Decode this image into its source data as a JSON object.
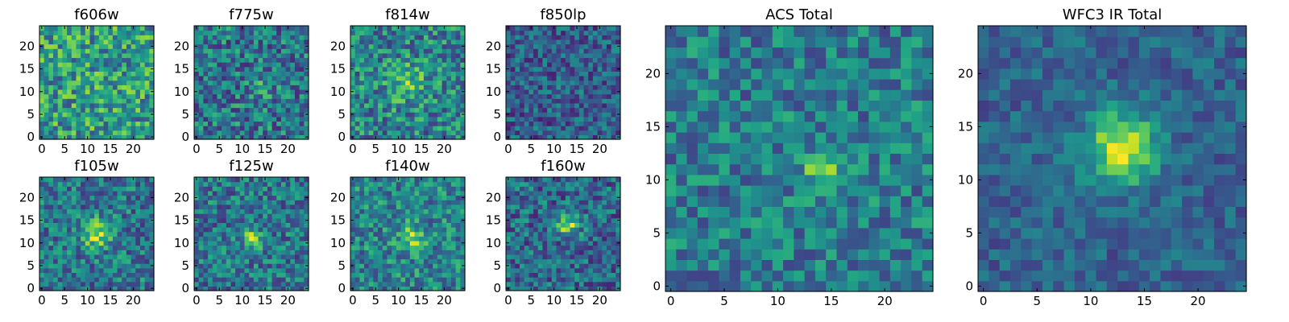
{
  "figure": {
    "colormap": "viridis",
    "stamp_size": 25
  },
  "chart_data": [
    {
      "type": "heatmap",
      "title": "f606w",
      "xticks": [
        0,
        5,
        10,
        15,
        20
      ],
      "yticks": [
        0,
        5,
        10,
        15,
        20
      ],
      "xlim": [
        0,
        25
      ],
      "ylim": [
        0,
        25
      ],
      "seed": 11,
      "peak": {
        "x": 13,
        "y": 12,
        "amp": 0.05,
        "sigma": 2.0
      },
      "base": 0.55,
      "noise": 0.3
    },
    {
      "type": "heatmap",
      "title": "f775w",
      "xticks": [
        0,
        5,
        10,
        15,
        20
      ],
      "yticks": [
        0,
        5,
        10,
        15,
        20
      ],
      "xlim": [
        0,
        25
      ],
      "ylim": [
        0,
        25
      ],
      "seed": 23,
      "peak": {
        "x": 14,
        "y": 11,
        "amp": 0.2,
        "sigma": 1.6
      },
      "base": 0.4,
      "noise": 0.28
    },
    {
      "type": "heatmap",
      "title": "f814w",
      "xticks": [
        0,
        5,
        10,
        15,
        20
      ],
      "yticks": [
        0,
        5,
        10,
        15,
        20
      ],
      "xlim": [
        0,
        25
      ],
      "ylim": [
        0,
        25
      ],
      "seed": 37,
      "peak": {
        "x": 12,
        "y": 12,
        "amp": 0.25,
        "sigma": 3.0
      },
      "base": 0.45,
      "noise": 0.28
    },
    {
      "type": "heatmap",
      "title": "f850lp",
      "xticks": [
        0,
        5,
        10,
        15,
        20
      ],
      "yticks": [
        0,
        5,
        10,
        15,
        20
      ],
      "xlim": [
        0,
        25
      ],
      "ylim": [
        0,
        25
      ],
      "seed": 41,
      "peak": {
        "x": 13,
        "y": 12,
        "amp": 0.05,
        "sigma": 2.0
      },
      "base": 0.3,
      "noise": 0.22
    },
    {
      "type": "heatmap",
      "title": "f105w",
      "xticks": [
        0,
        5,
        10,
        15,
        20
      ],
      "yticks": [
        0,
        5,
        10,
        15,
        20
      ],
      "xlim": [
        0,
        25
      ],
      "ylim": [
        0,
        25
      ],
      "seed": 53,
      "peak": {
        "x": 12,
        "y": 12,
        "amp": 0.45,
        "sigma": 2.2
      },
      "base": 0.4,
      "noise": 0.25
    },
    {
      "type": "heatmap",
      "title": "f125w",
      "xticks": [
        0,
        5,
        10,
        15,
        20
      ],
      "yticks": [
        0,
        5,
        10,
        15,
        20
      ],
      "xlim": [
        0,
        25
      ],
      "ylim": [
        0,
        25
      ],
      "seed": 67,
      "peak": {
        "x": 12,
        "y": 11,
        "amp": 0.4,
        "sigma": 1.5
      },
      "base": 0.4,
      "noise": 0.25
    },
    {
      "type": "heatmap",
      "title": "f140w",
      "xticks": [
        0,
        5,
        10,
        15,
        20
      ],
      "yticks": [
        0,
        5,
        10,
        15,
        20
      ],
      "xlim": [
        0,
        25
      ],
      "ylim": [
        0,
        25
      ],
      "seed": 79,
      "peak": {
        "x": 13,
        "y": 11,
        "amp": 0.35,
        "sigma": 2.0
      },
      "base": 0.45,
      "noise": 0.25
    },
    {
      "type": "heatmap",
      "title": "f160w",
      "xticks": [
        0,
        5,
        10,
        15,
        20
      ],
      "yticks": [
        0,
        5,
        10,
        15,
        20
      ],
      "xlim": [
        0,
        25
      ],
      "ylim": [
        0,
        25
      ],
      "seed": 83,
      "peak": {
        "x": 13,
        "y": 14,
        "amp": 0.5,
        "sigma": 1.7
      },
      "base": 0.35,
      "noise": 0.25
    },
    {
      "type": "heatmap",
      "title": "ACS Total",
      "xticks": [
        0,
        5,
        10,
        15,
        20
      ],
      "yticks": [
        0,
        5,
        10,
        15,
        20
      ],
      "xlim": [
        0,
        25
      ],
      "ylim": [
        0,
        25
      ],
      "seed": 97,
      "peak": {
        "x": 14,
        "y": 11,
        "amp": 0.5,
        "sigma": 1.0
      },
      "base": 0.42,
      "noise": 0.22
    },
    {
      "type": "heatmap",
      "title": "WFC3 IR Total",
      "xticks": [
        0,
        5,
        10,
        15,
        20
      ],
      "yticks": [
        0,
        5,
        10,
        15,
        20
      ],
      "xlim": [
        0,
        25
      ],
      "ylim": [
        0,
        25
      ],
      "seed": 101,
      "peak": {
        "x": 13,
        "y": 13,
        "amp": 0.65,
        "sigma": 2.3
      },
      "base": 0.32,
      "noise": 0.14
    }
  ]
}
